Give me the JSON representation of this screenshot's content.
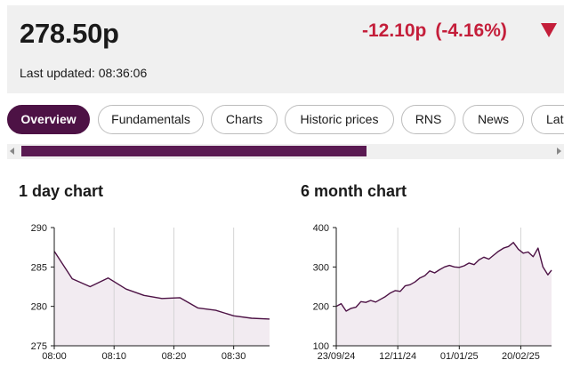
{
  "header": {
    "price": "278.50p",
    "change": "-12.10p",
    "change_pct": "(-4.16%)",
    "last_updated": "Last updated: 08:36:06",
    "change_color": "#c41e3a"
  },
  "tabs": [
    {
      "label": "Overview",
      "active": true
    },
    {
      "label": "Fundamentals",
      "active": false
    },
    {
      "label": "Charts",
      "active": false
    },
    {
      "label": "Historic prices",
      "active": false
    },
    {
      "label": "RNS",
      "active": false
    },
    {
      "label": "News",
      "active": false
    },
    {
      "label": "Late",
      "active": false
    }
  ],
  "accent_color": "#4d1245",
  "scrollbar": {
    "position": 0.0,
    "visible_fraction": 0.64
  },
  "chart_data": [
    {
      "type": "area",
      "title": "1 day chart",
      "xlabel": "",
      "ylabel": "",
      "ylim": [
        275,
        290
      ],
      "xlim": [
        "08:00",
        "08:36"
      ],
      "x_ticks": [
        "08:00",
        "08:10",
        "08:20",
        "08:30"
      ],
      "y_ticks": [
        275,
        280,
        285,
        290
      ],
      "grid": "vertical",
      "x": [
        "08:00",
        "08:03",
        "08:06",
        "08:09",
        "08:12",
        "08:15",
        "08:18",
        "08:21",
        "08:24",
        "08:27",
        "08:30",
        "08:33",
        "08:36"
      ],
      "values": [
        287.0,
        283.5,
        282.5,
        283.6,
        282.2,
        281.4,
        281.0,
        281.1,
        279.8,
        279.5,
        278.8,
        278.5,
        278.4
      ],
      "color": "#4d1245",
      "fill": "#f2ebf1"
    },
    {
      "type": "area",
      "title": "6 month chart",
      "xlabel": "",
      "ylabel": "",
      "ylim": [
        100,
        400
      ],
      "xlim": [
        "2024-09-23",
        "2025-03-17"
      ],
      "x_ticks": [
        "23/09/24",
        "12/11/24",
        "01/01/25",
        "20/02/25"
      ],
      "y_ticks": [
        100,
        200,
        300,
        400
      ],
      "grid": "vertical",
      "x": [
        "2024-09-23",
        "2024-09-27",
        "2024-10-01",
        "2024-10-05",
        "2024-10-09",
        "2024-10-13",
        "2024-10-17",
        "2024-10-21",
        "2024-10-25",
        "2024-10-29",
        "2024-11-02",
        "2024-11-06",
        "2024-11-10",
        "2024-11-14",
        "2024-11-18",
        "2024-11-22",
        "2024-11-26",
        "2024-11-30",
        "2024-12-04",
        "2024-12-08",
        "2024-12-12",
        "2024-12-16",
        "2024-12-20",
        "2024-12-24",
        "2024-12-28",
        "2025-01-01",
        "2025-01-05",
        "2025-01-09",
        "2025-01-13",
        "2025-01-17",
        "2025-01-21",
        "2025-01-25",
        "2025-01-29",
        "2025-02-02",
        "2025-02-06",
        "2025-02-10",
        "2025-02-14",
        "2025-02-18",
        "2025-02-22",
        "2025-02-26",
        "2025-03-02",
        "2025-03-06",
        "2025-03-10",
        "2025-03-14",
        "2025-03-17"
      ],
      "values": [
        200,
        207,
        188,
        195,
        198,
        212,
        210,
        215,
        211,
        218,
        225,
        234,
        240,
        238,
        252,
        255,
        262,
        272,
        278,
        290,
        285,
        293,
        300,
        304,
        300,
        299,
        303,
        310,
        306,
        318,
        325,
        320,
        330,
        340,
        348,
        352,
        362,
        345,
        335,
        338,
        326,
        348,
        300,
        280,
        292
      ],
      "color": "#4d1245",
      "fill": "#f2ebf1"
    }
  ]
}
